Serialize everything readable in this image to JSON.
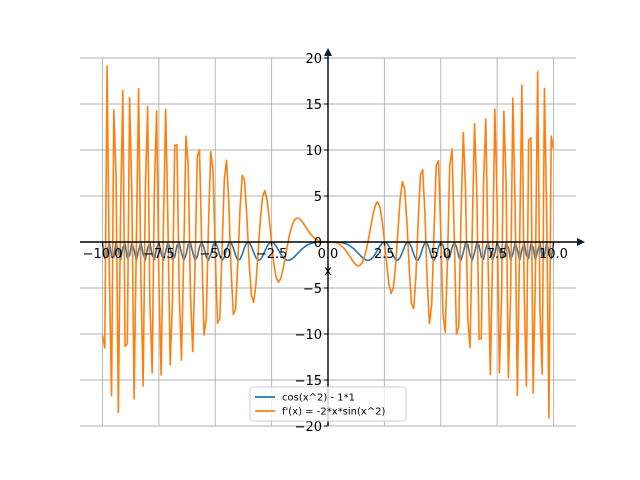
{
  "chart_data": {
    "type": "line",
    "title": "",
    "xlabel": "x",
    "ylabel": "",
    "xlim": [
      -11,
      11
    ],
    "ylim": [
      -20,
      20
    ],
    "grid": true,
    "legend_position": "bottom-center",
    "xticks": [
      -10,
      -7.5,
      -5,
      -2.5,
      0,
      2.5,
      5,
      7.5,
      10
    ],
    "xtick_labels": [
      "−10.0",
      "−7.5",
      "−5.0",
      "−2.5",
      "0.0",
      "2.5",
      "5.0",
      "7.5",
      "10.0"
    ],
    "yticks": [
      -20,
      -15,
      -10,
      -5,
      0,
      5,
      10,
      15,
      20
    ],
    "ytick_labels": [
      "−20",
      "−15",
      "−10",
      "−5",
      "0",
      "5",
      "10",
      "15",
      "20"
    ],
    "x_range": [
      -10,
      10
    ],
    "sample_count": 201,
    "series": [
      {
        "name": "cos(x^2) - 1*1",
        "color": "#1f77b4"
      },
      {
        "name": "f'(x) = -2*x*sin(x^2)",
        "color": "#ff7f0e"
      }
    ]
  }
}
